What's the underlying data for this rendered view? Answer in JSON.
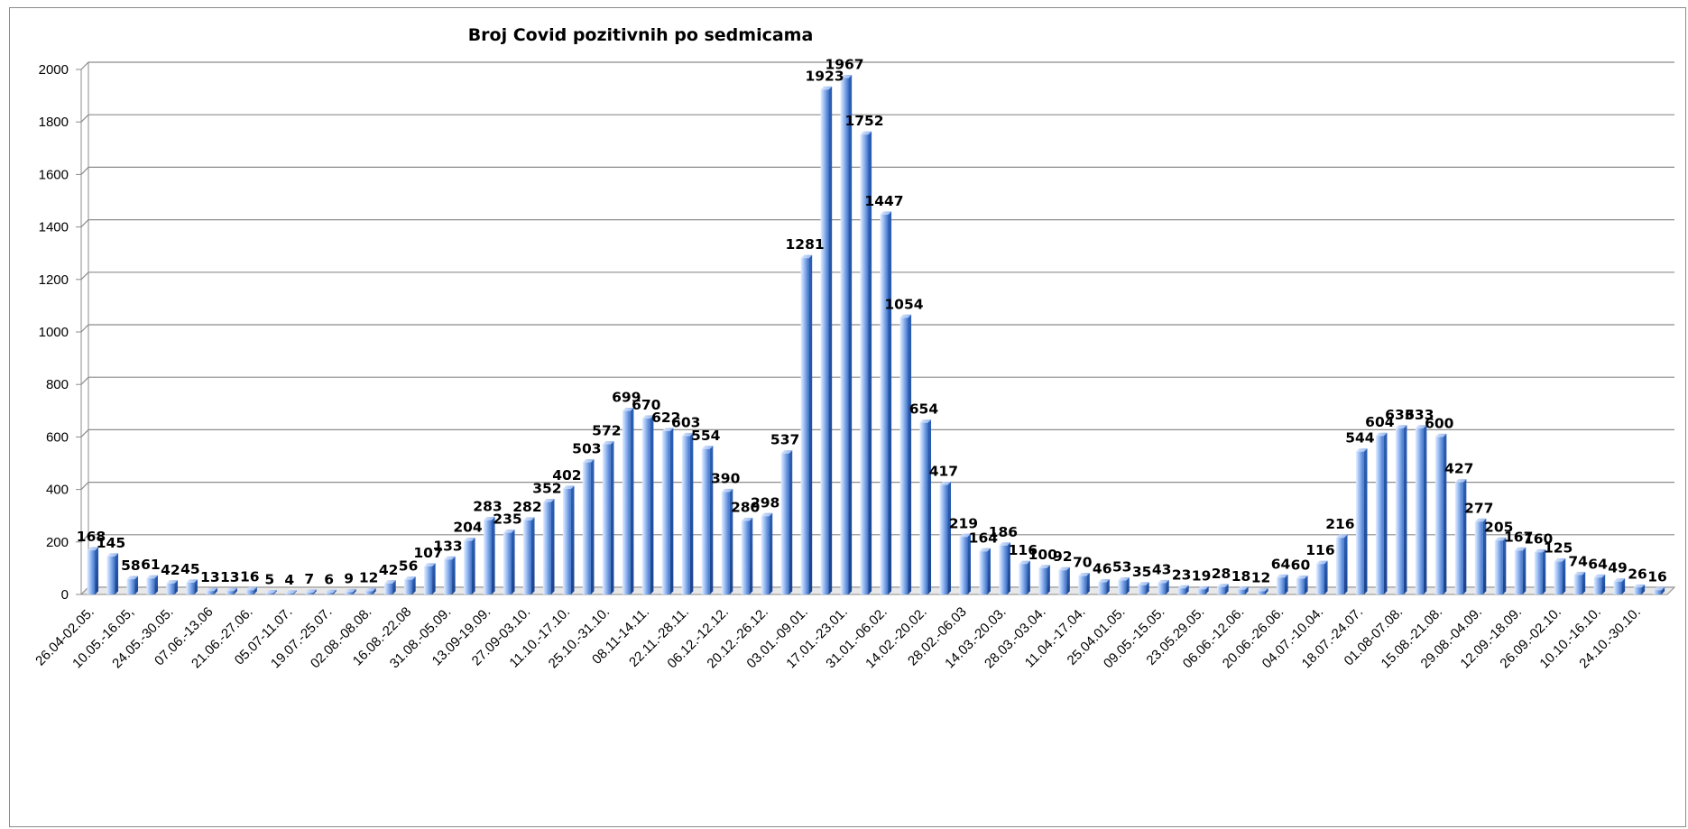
{
  "chart_data": {
    "type": "bar",
    "title": "Broj Covid pozitivnih po sedmicama",
    "xlabel": "",
    "ylabel": "",
    "ylim": [
      0,
      2000
    ],
    "yticks": [
      "0",
      "200",
      "400",
      "600",
      "800",
      "1000",
      "1200",
      "1400",
      "1600",
      "1800",
      "2000"
    ],
    "grid": true,
    "legend": "none",
    "colors": {
      "bar_light": "#bcd4fb",
      "bar_dark": "#2a5fb8",
      "grid": "#8c8c8c"
    },
    "categories": [
      "26.04-02.05.",
      "",
      "10.05.-16.05,",
      "",
      "24.05.-30.05.",
      "",
      "07.06.-13.06",
      "",
      "21.06.-27.06.",
      "",
      "05.07-11.07.",
      "",
      "19.07.-25.07.",
      "",
      "02.08.-08.08.",
      "",
      "16.08.-22.08",
      "",
      "31.08.-05.09.",
      "",
      "13.09-19.09.",
      "",
      "27.09-03.10.",
      "",
      "11.10.-17.10.",
      "",
      "25.10.-31.10.",
      "",
      "08.11-14.11.",
      "",
      "22.11.-28.11.",
      "",
      "06.12.-12.12.",
      "",
      "20.12.-26.12.",
      "",
      "03.01.-09.01.",
      "",
      "17.01.-23.01.",
      "",
      "31.01.-06.02.",
      "",
      "14.02.-20.02.",
      "",
      "28.02.-06.03",
      "",
      "14.03.-20.03.",
      "",
      "28.03.-03.04.",
      "",
      "11.04.-17.04.",
      "",
      "25.04.01.05.",
      "",
      "09.05.-15.05.",
      "",
      "23.05.29.05.",
      "",
      "06.06.-12.06.",
      "",
      "20.06.-26.06.",
      "",
      "04.07.-10.04.",
      "",
      "18.07.-24.07.",
      "",
      "01.08-07.08.",
      "",
      "15.08.-21.08.",
      "",
      "29.08.-04.09.",
      "",
      "12.09.-18.09.",
      "",
      "26.09.-02.10.",
      "",
      "10.10.-16.10.",
      "",
      "24.10.-30.10.",
      ""
    ],
    "values": [
      168,
      145,
      58,
      61,
      42,
      45,
      13,
      13,
      16,
      5,
      4,
      7,
      6,
      9,
      12,
      42,
      56,
      107,
      133,
      204,
      283,
      235,
      282,
      352,
      402,
      503,
      572,
      699,
      670,
      622,
      603,
      554,
      390,
      280,
      298,
      537,
      1281,
      1923,
      1967,
      1752,
      1447,
      1054,
      654,
      417,
      219,
      164,
      186,
      116,
      100,
      92,
      70,
      46,
      53,
      35,
      43,
      23,
      19,
      28,
      18,
      12,
      64,
      60,
      116,
      216,
      544,
      604,
      633,
      633,
      600,
      427,
      277,
      205,
      167,
      160,
      125,
      74,
      64,
      49,
      26,
      16
    ],
    "data_labels": [
      "168",
      "145",
      "58",
      "61",
      "42",
      "45",
      "13",
      "13",
      "16",
      "5",
      "4",
      "7",
      "6",
      "9",
      "12",
      "42",
      "56",
      "107",
      "133",
      "204",
      "283",
      "235",
      "282",
      "352",
      "402",
      "503",
      "572",
      "699",
      "670",
      "622",
      "603",
      "554",
      "390",
      "280",
      "298",
      "537",
      "1281",
      "1923",
      "1967",
      "1752",
      "1447",
      "1054",
      "654",
      "417",
      "219",
      "164",
      "186",
      "116",
      "100",
      "92",
      "70",
      "46",
      "53",
      "35",
      "43",
      "23",
      "19",
      "28",
      "18",
      "12",
      "64",
      "60",
      "116",
      "216",
      "544",
      "604",
      "633",
      "633",
      "600",
      "427",
      "277",
      "205",
      "167",
      "160",
      "125",
      "74",
      "64",
      "49",
      "26",
      "16"
    ]
  }
}
